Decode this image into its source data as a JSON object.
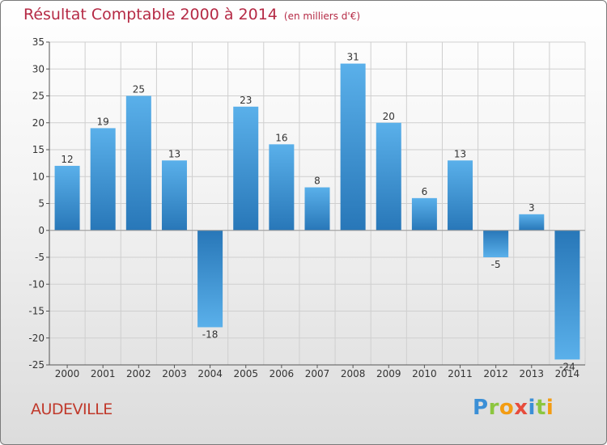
{
  "title": "Résultat Comptable 2000 à 2014",
  "subtitle": "(en milliers d'€)",
  "commune": "AUDEVILLE",
  "logo": {
    "letters": [
      "P",
      "r",
      "o",
      "x",
      "i",
      "t",
      "i"
    ],
    "colors": [
      "#3b8fd6",
      "#8cc63f",
      "#f39c12",
      "#e74c3c",
      "#3b8fd6",
      "#8cc63f",
      "#f39c12"
    ]
  },
  "colors": {
    "bar_light": "#5ab0ea",
    "bar_dark": "#2877b8",
    "axis": "#555555",
    "grid": "#cfcfcf"
  },
  "chart_data": {
    "type": "bar",
    "title": "Résultat Comptable 2000 à 2014",
    "subtitle": "(en milliers d'€)",
    "xlabel": "",
    "ylabel": "",
    "categories": [
      "2000",
      "2001",
      "2002",
      "2003",
      "2004",
      "2005",
      "2006",
      "2007",
      "2008",
      "2009",
      "2010",
      "2011",
      "2012",
      "2013",
      "2014"
    ],
    "values": [
      12,
      19,
      25,
      13,
      -18,
      23,
      16,
      8,
      31,
      20,
      6,
      13,
      -5,
      3,
      -24
    ],
    "ylim": [
      -25,
      35
    ],
    "yticks": [
      35,
      30,
      25,
      20,
      15,
      10,
      5,
      0,
      -5,
      -10,
      -15,
      -20,
      -25
    ],
    "grid": true
  }
}
